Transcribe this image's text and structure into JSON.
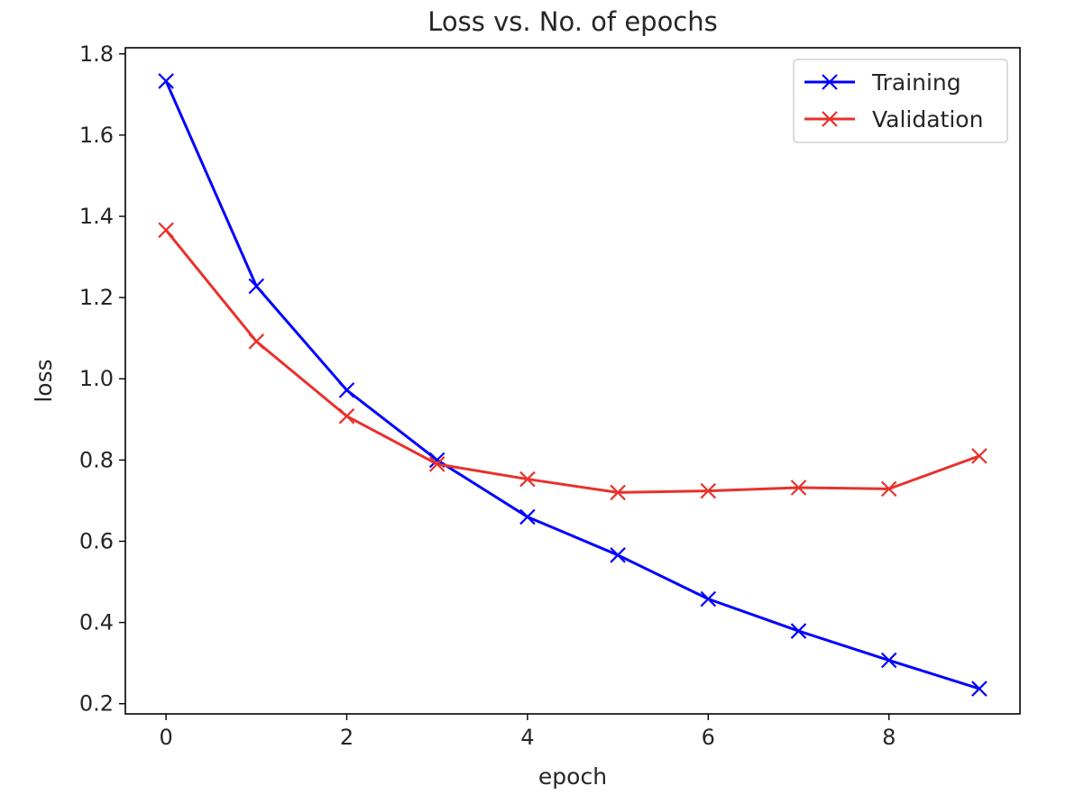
{
  "chart_data": {
    "type": "line",
    "title": "Loss vs. No. of epochs",
    "xlabel": "epoch",
    "ylabel": "loss",
    "x": [
      0,
      1,
      2,
      3,
      4,
      5,
      6,
      7,
      8,
      9
    ],
    "xlim": [
      -0.45,
      9.45
    ],
    "ylim": [
      0.175,
      1.815
    ],
    "xticks": [
      0,
      2,
      4,
      6,
      8
    ],
    "yticks": [
      0.2,
      0.4,
      0.6,
      0.8,
      1.0,
      1.2,
      1.4,
      1.6,
      1.8
    ],
    "grid": false,
    "legend_position": "top-right",
    "series": [
      {
        "name": "Training",
        "color": "#0000ff",
        "marker": "x",
        "values": [
          1.733,
          1.228,
          0.972,
          0.8,
          0.66,
          0.566,
          0.458,
          0.379,
          0.307,
          0.237
        ]
      },
      {
        "name": "Validation",
        "color": "#e8312b",
        "marker": "x",
        "values": [
          1.366,
          1.092,
          0.908,
          0.79,
          0.753,
          0.72,
          0.724,
          0.732,
          0.729,
          0.81
        ]
      }
    ]
  }
}
